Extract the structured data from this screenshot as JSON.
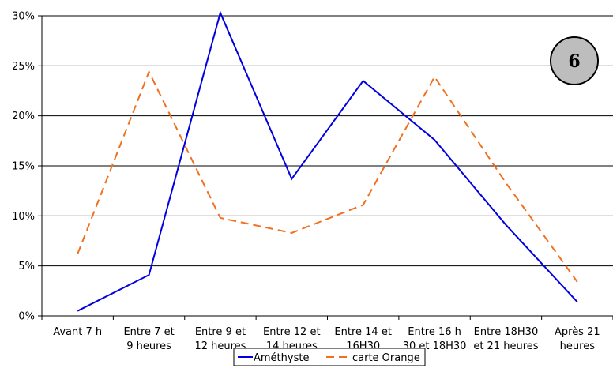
{
  "chart_data": {
    "type": "line",
    "categories": [
      [
        "Avant 7 h"
      ],
      [
        "Entre 7 et",
        "9 heures"
      ],
      [
        "Entre 9 et",
        "12 heures"
      ],
      [
        "Entre 12 et",
        "14 heures"
      ],
      [
        "Entre 14 et",
        "16H30"
      ],
      [
        "Entre 16 h",
        "30 et 18H30"
      ],
      [
        "Entre 18H30",
        "et 21 heures"
      ],
      [
        "Après 21",
        "heures"
      ]
    ],
    "series": [
      {
        "name": "Améthyste",
        "color": "#0000e0",
        "dash": "solid",
        "values": [
          0.5,
          4.1,
          30.3,
          13.7,
          23.5,
          17.6,
          9.1,
          1.4
        ]
      },
      {
        "name": "carte Orange",
        "color": "#f07020",
        "dash": "dashed",
        "values": [
          6.2,
          24.4,
          9.8,
          8.3,
          11.1,
          23.9,
          13.3,
          3.4
        ]
      }
    ],
    "yticks": [
      "0%",
      "5%",
      "10%",
      "15%",
      "20%",
      "25%",
      "30%"
    ],
    "ylim": [
      0,
      30
    ],
    "grid": true,
    "legend_position": "bottom-center",
    "badge": "6",
    "title": "",
    "xlabel": "",
    "ylabel": ""
  }
}
